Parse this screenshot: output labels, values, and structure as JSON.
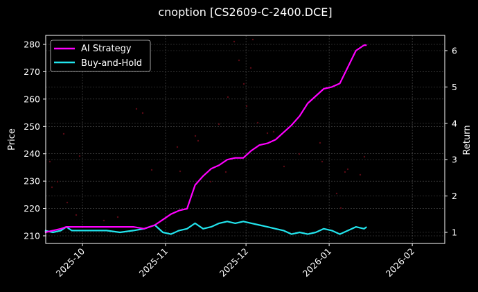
{
  "chart_data": {
    "type": "line",
    "title": "cnoption [CS2609-C-2400.DCE]",
    "xlabel": "",
    "ylabel_left": "Price",
    "ylabel_right": "Return",
    "ylim_left": [
      207,
      283
    ],
    "ylim_right": [
      0.7,
      6.4
    ],
    "yticks_left": [
      210,
      220,
      230,
      240,
      250,
      260,
      270,
      280
    ],
    "yticks_right": [
      1,
      2,
      3,
      4,
      5,
      6
    ],
    "xticks": [
      "2025-10",
      "2025-11",
      "2025-12",
      "2026-01",
      "2026-02"
    ],
    "grid": true,
    "legend_position": "upper left",
    "background": "#000000",
    "colors": {
      "ai_strategy": "#ff00ff",
      "buy_and_hold": "#22e5ee",
      "price_dots": "#5a0a14"
    },
    "x": [
      "2025-09-17",
      "2025-09-20",
      "2025-09-23",
      "2025-09-25",
      "2025-09-27",
      "2025-10-01",
      "2025-10-05",
      "2025-10-10",
      "2025-10-15",
      "2025-10-20",
      "2025-10-24",
      "2025-10-28",
      "2025-10-31",
      "2025-11-03",
      "2025-11-06",
      "2025-11-09",
      "2025-11-12",
      "2025-11-15",
      "2025-11-18",
      "2025-11-21",
      "2025-11-24",
      "2025-11-27",
      "2025-11-30",
      "2025-12-03",
      "2025-12-06",
      "2025-12-09",
      "2025-12-12",
      "2025-12-15",
      "2025-12-18",
      "2025-12-21",
      "2025-12-24",
      "2025-12-27",
      "2025-12-30",
      "2026-01-02",
      "2026-01-05",
      "2026-01-08",
      "2026-01-11",
      "2026-01-14",
      "2026-01-15"
    ],
    "series": [
      {
        "name": "AI Strategy",
        "axis": "right",
        "values": [
          1.0,
          1.05,
          1.1,
          1.15,
          1.15,
          1.15,
          1.15,
          1.15,
          1.15,
          1.15,
          1.1,
          1.2,
          1.35,
          1.5,
          1.6,
          1.65,
          2.3,
          2.55,
          2.75,
          2.85,
          3.0,
          3.05,
          3.05,
          3.25,
          3.4,
          3.45,
          3.55,
          3.75,
          3.95,
          4.2,
          4.55,
          4.75,
          4.95,
          5.0,
          5.1,
          5.55,
          6.0,
          6.15,
          6.15
        ]
      },
      {
        "name": "Buy-and-Hold",
        "axis": "right",
        "values": [
          1.05,
          1.0,
          1.05,
          1.15,
          1.05,
          1.05,
          1.05,
          1.05,
          1.0,
          1.05,
          1.1,
          1.2,
          1.0,
          0.95,
          1.05,
          1.1,
          1.25,
          1.1,
          1.15,
          1.25,
          1.3,
          1.25,
          1.3,
          1.25,
          1.2,
          1.15,
          1.1,
          1.05,
          0.95,
          1.0,
          0.95,
          1.0,
          1.1,
          1.05,
          0.95,
          1.05,
          1.15,
          1.1,
          1.15
        ]
      }
    ]
  },
  "legend": {
    "items": [
      {
        "label": "AI Strategy",
        "color": "#ff00ff"
      },
      {
        "label": "Buy-and-Hold",
        "color": "#22e5ee"
      }
    ]
  }
}
